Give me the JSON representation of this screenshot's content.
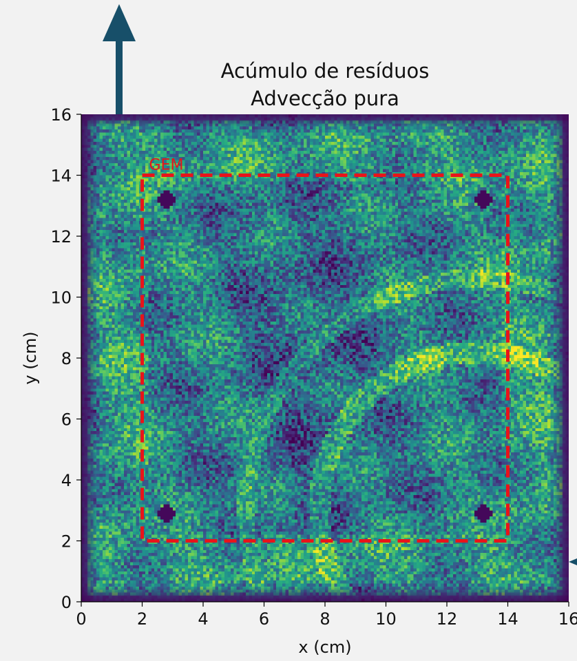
{
  "chart_data": {
    "type": "heatmap",
    "title_lines": [
      "Acúmulo de resíduos",
      "Advecção pura"
    ],
    "xlabel": "x (cm)",
    "ylabel": "y (cm)",
    "xlim": [
      0,
      16
    ],
    "ylim": [
      0,
      16
    ],
    "xticks": [
      0,
      2,
      4,
      6,
      8,
      10,
      12,
      14,
      16
    ],
    "yticks": [
      0,
      2,
      4,
      6,
      8,
      10,
      12,
      14,
      16
    ],
    "xtick_labels": [
      "0",
      "2",
      "4",
      "6",
      "8",
      "10",
      "12",
      "14",
      "16"
    ],
    "ytick_labels": [
      "0",
      "2",
      "4",
      "6",
      "8",
      "10",
      "12",
      "14",
      "16"
    ],
    "colormap": "viridis",
    "region": {
      "label": "GEM",
      "x": [
        2,
        14
      ],
      "y": [
        2,
        14
      ],
      "style": "dashed",
      "color": "#e8141a"
    },
    "dark_spots": [
      {
        "x": 2.8,
        "y": 13.2
      },
      {
        "x": 13.2,
        "y": 13.2
      },
      {
        "x": 2.8,
        "y": 2.9
      },
      {
        "x": 13.2,
        "y": 2.9
      }
    ],
    "grid": false
  },
  "colors": {
    "background": "#f2f2f2",
    "arrow": "#174f69",
    "region": "#e8141a"
  }
}
